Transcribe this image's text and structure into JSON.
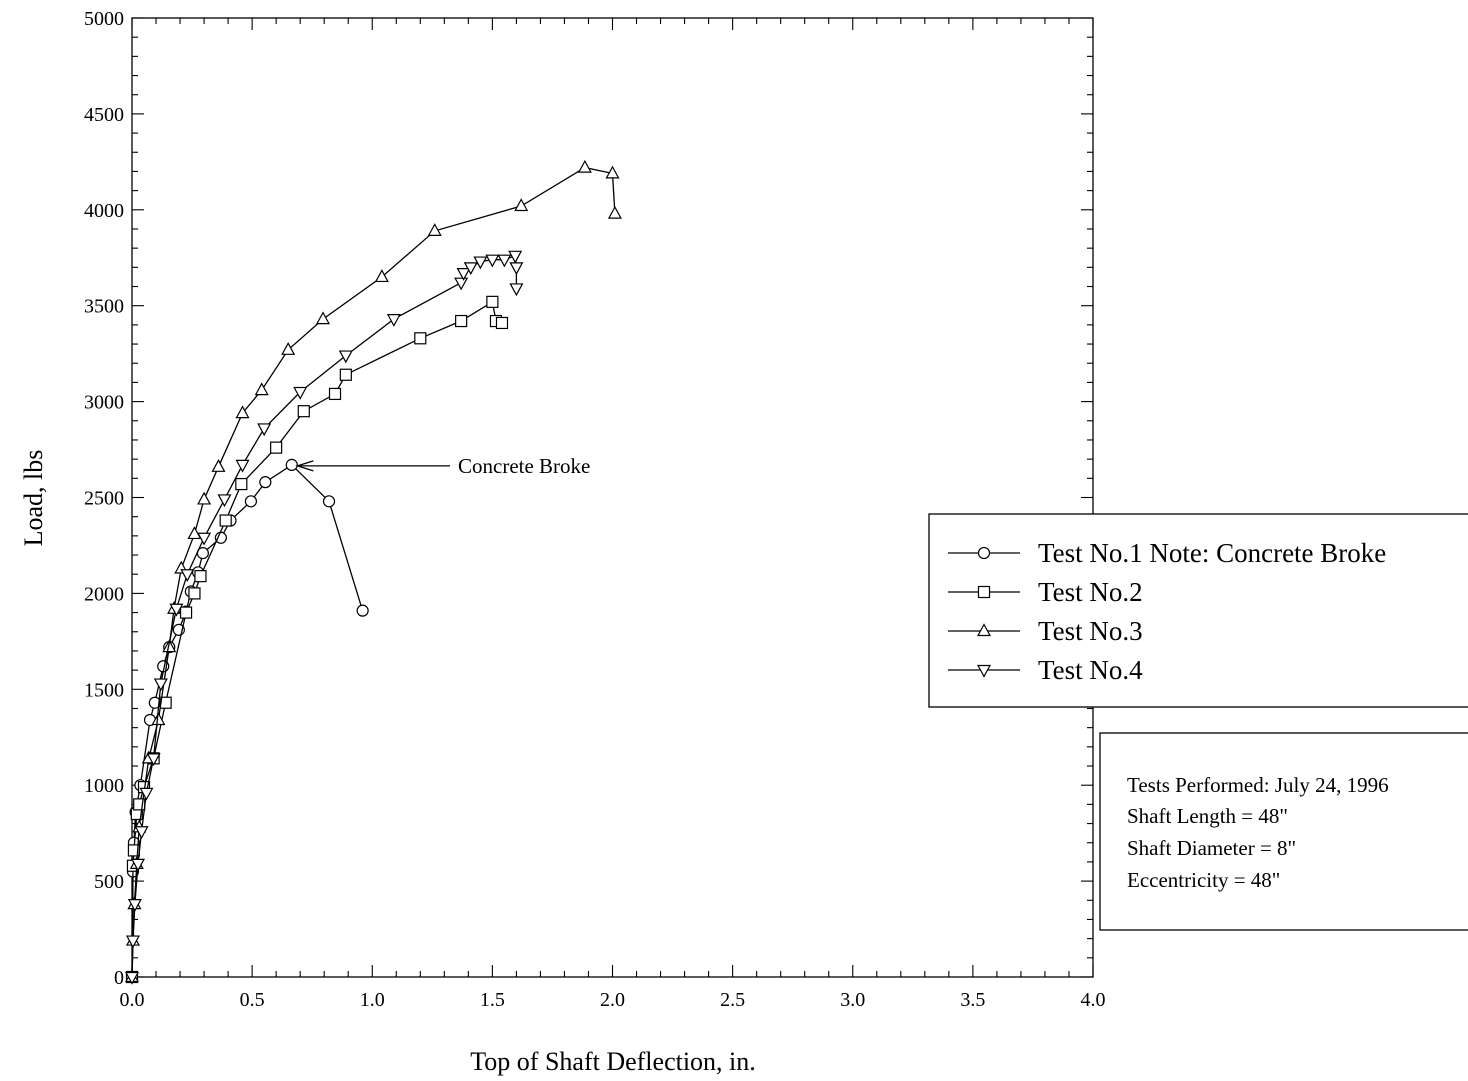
{
  "chart_data": {
    "type": "line",
    "title": "",
    "xlabel": "Top of Shaft Deflection, in.",
    "ylabel": "Load, lbs",
    "xlim": [
      0,
      4.0
    ],
    "ylim": [
      0,
      5000
    ],
    "x_ticks": [
      "0.0",
      "0.5",
      "1.0",
      "1.5",
      "2.0",
      "2.5",
      "3.0",
      "3.5",
      "4.0"
    ],
    "y_ticks": [
      "0",
      "500",
      "1000",
      "1500",
      "2000",
      "2500",
      "3000",
      "3500",
      "4000",
      "4500",
      "5000"
    ],
    "grid": false,
    "legend_position": "right",
    "series": [
      {
        "name": "Test No.1 Note: Concrete Broke",
        "marker": "circle",
        "points": [
          [
            0,
            0
          ],
          [
            0.004,
            550
          ],
          [
            0.008,
            700
          ],
          [
            0.015,
            860
          ],
          [
            0.035,
            1000
          ],
          [
            0.075,
            1340
          ],
          [
            0.095,
            1430
          ],
          [
            0.13,
            1620
          ],
          [
            0.155,
            1720
          ],
          [
            0.195,
            1810
          ],
          [
            0.225,
            1905
          ],
          [
            0.245,
            2010
          ],
          [
            0.275,
            2110
          ],
          [
            0.295,
            2210
          ],
          [
            0.37,
            2290
          ],
          [
            0.41,
            2380
          ],
          [
            0.495,
            2480
          ],
          [
            0.555,
            2580
          ],
          [
            0.665,
            2670
          ],
          [
            0.82,
            2480
          ],
          [
            0.96,
            1910
          ]
        ]
      },
      {
        "name": "Test No.2",
        "marker": "square",
        "points": [
          [
            0,
            0
          ],
          [
            0.004,
            580
          ],
          [
            0.008,
            660
          ],
          [
            0.02,
            850
          ],
          [
            0.03,
            900
          ],
          [
            0.05,
            990
          ],
          [
            0.09,
            1140
          ],
          [
            0.14,
            1430
          ],
          [
            0.225,
            1900
          ],
          [
            0.26,
            2000
          ],
          [
            0.285,
            2090
          ],
          [
            0.39,
            2380
          ],
          [
            0.455,
            2570
          ],
          [
            0.6,
            2760
          ],
          [
            0.715,
            2950
          ],
          [
            0.845,
            3040
          ],
          [
            0.89,
            3140
          ],
          [
            1.2,
            3330
          ],
          [
            1.37,
            3420
          ],
          [
            1.5,
            3520
          ],
          [
            1.515,
            3420
          ],
          [
            1.54,
            3410
          ]
        ]
      },
      {
        "name": "Test No.3",
        "marker": "triangle-up",
        "points": [
          [
            0,
            0
          ],
          [
            0.004,
            190
          ],
          [
            0.01,
            380
          ],
          [
            0.02,
            590
          ],
          [
            0.03,
            780
          ],
          [
            0.07,
            1140
          ],
          [
            0.11,
            1340
          ],
          [
            0.155,
            1720
          ],
          [
            0.175,
            1920
          ],
          [
            0.205,
            2130
          ],
          [
            0.26,
            2310
          ],
          [
            0.3,
            2490
          ],
          [
            0.36,
            2660
          ],
          [
            0.46,
            2940
          ],
          [
            0.54,
            3060
          ],
          [
            0.65,
            3270
          ],
          [
            0.795,
            3430
          ],
          [
            1.04,
            3650
          ],
          [
            1.26,
            3890
          ],
          [
            1.62,
            4020
          ],
          [
            1.885,
            4220
          ],
          [
            2.0,
            4190
          ],
          [
            2.01,
            3980
          ]
        ]
      },
      {
        "name": "Test No.4",
        "marker": "triangle-down",
        "points": [
          [
            0,
            0
          ],
          [
            0.004,
            190
          ],
          [
            0.012,
            380
          ],
          [
            0.025,
            590
          ],
          [
            0.04,
            760
          ],
          [
            0.06,
            960
          ],
          [
            0.09,
            1140
          ],
          [
            0.12,
            1530
          ],
          [
            0.185,
            1920
          ],
          [
            0.23,
            2100
          ],
          [
            0.3,
            2290
          ],
          [
            0.385,
            2490
          ],
          [
            0.46,
            2670
          ],
          [
            0.55,
            2860
          ],
          [
            0.7,
            3050
          ],
          [
            0.89,
            3240
          ],
          [
            1.09,
            3430
          ],
          [
            1.37,
            3620
          ],
          [
            1.38,
            3670
          ],
          [
            1.41,
            3700
          ],
          [
            1.45,
            3730
          ],
          [
            1.5,
            3740
          ],
          [
            1.55,
            3740
          ],
          [
            1.595,
            3760
          ],
          [
            1.6,
            3700
          ],
          [
            1.6,
            3590
          ]
        ]
      }
    ],
    "annotations": [
      {
        "text": "Concrete Broke",
        "x": 0.68,
        "y": 2665
      }
    ],
    "info_box": [
      "Tests Performed: July 24, 1996",
      "Shaft Length = 48\"",
      "Shaft Diameter = 8\"",
      "Eccentricity = 48\""
    ],
    "colors": {
      "line": "#000000",
      "marker_fill": "#ffffff",
      "background": "#ffffff"
    }
  }
}
